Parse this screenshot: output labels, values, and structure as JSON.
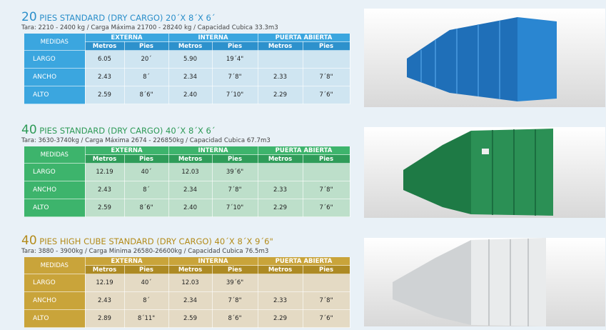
{
  "sections": [
    {
      "title": {
        "number": "20",
        "text": "PIES STANDARD (DRY CARGO) 20´X 8´X 6´"
      },
      "subtitle": "Tara: 2210 - 2400 kg / Carga Máxima 21700 - 28240 kg / Capacidad Cubica 33.3m3",
      "table": {
        "corner": "MEDIDAS",
        "groups": [
          "EXTERNA",
          "INTERNA",
          "PUERTA ABIERTA"
        ],
        "units": [
          "Metros",
          "Pies",
          "Metros",
          "Pies",
          "Metros",
          "Pies"
        ],
        "rows": [
          {
            "label": "LARGO",
            "cells": [
              "6.05",
              "20´",
              "5.90",
              "19´4\""
            ]
          },
          {
            "label": "ANCHO",
            "cells": [
              "2.43",
              "8´",
              "2.34",
              "7´8\"",
              "2.33",
              "7´8\""
            ]
          },
          {
            "label": "ALTO",
            "cells": [
              "2.59",
              "8´6\"",
              "2.40",
              "7´10\"",
              "2.29",
              "7´6\""
            ]
          }
        ]
      }
    },
    {
      "title": {
        "number": "40",
        "text": "PIES STANDARD (DRY CARGO) 40´X 8´X 6´"
      },
      "subtitle": "Tara: 3630-3740kg / Carga Máxima 2674 - 226850kg / Capacidad Cubica 67.7m3",
      "table": {
        "corner": "MEDIDAS",
        "groups": [
          "EXTERNA",
          "INTERNA",
          "PUERTA ABIERTA"
        ],
        "units": [
          "Metros",
          "Pies",
          "Metros",
          "Pies",
          "Metros",
          "Pies"
        ],
        "rows": [
          {
            "label": "LARGO",
            "cells": [
              "12.19",
              "40´",
              "12.03",
              "39´6\""
            ]
          },
          {
            "label": "ANCHO",
            "cells": [
              "2.43",
              "8´",
              "2.34",
              "7´8\"",
              "2.33",
              "7´8\""
            ]
          },
          {
            "label": "ALTO",
            "cells": [
              "2.59",
              "8´6\"",
              "2.40",
              "7´10\"",
              "2.29",
              "7´6\""
            ]
          }
        ]
      }
    },
    {
      "title": {
        "number": "40",
        "text": "PIES HIGH CUBE STANDARD (DRY CARGO) 40´X 8´X 9´6\""
      },
      "subtitle": "Tara: 3880 - 3900kg / Carga Minima 26580-26600kg / Capacidad Cubica 76.5m3",
      "table": {
        "corner": "MEDIDAS",
        "groups": [
          "EXTERNA",
          "INTERNA",
          "PUERTA ABIERTA"
        ],
        "units": [
          "Metros",
          "Pies",
          "Metros",
          "Pies",
          "Metros",
          "Pies"
        ],
        "rows": [
          {
            "label": "LARGO",
            "cells": [
              "12.19",
              "40´",
              "12.03",
              "39´6\""
            ]
          },
          {
            "label": "ANCHO",
            "cells": [
              "2.43",
              "8´",
              "2.34",
              "7´8\"",
              "2.33",
              "7´8\""
            ]
          },
          {
            "label": "ALTO",
            "cells": [
              "2.89",
              "8´11\"",
              "2.59",
              "8´6\"",
              "2.29",
              "7´6\""
            ]
          }
        ]
      }
    }
  ]
}
